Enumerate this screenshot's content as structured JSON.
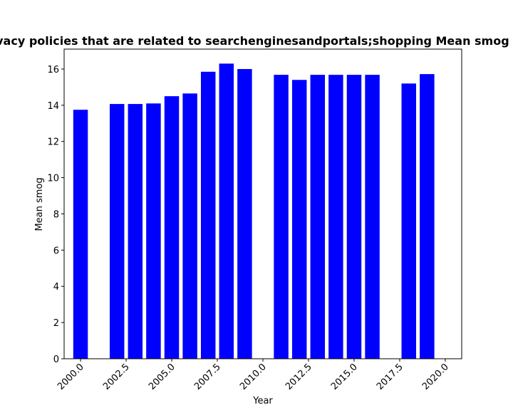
{
  "chart_data": {
    "type": "bar",
    "title": "Mean smog of privacy policies that are related to searchenginesandportals;shopping Mean smog in privacy policies",
    "xlabel": "Year",
    "ylabel": "Mean smog",
    "x": [
      2000,
      2002,
      2003,
      2004,
      2005,
      2006,
      2007,
      2008,
      2009,
      2011,
      2012,
      2013,
      2014,
      2015,
      2016,
      2018,
      2019
    ],
    "values": [
      13.75,
      14.07,
      14.07,
      14.1,
      14.5,
      14.65,
      15.85,
      16.3,
      16.0,
      15.68,
      15.4,
      15.68,
      15.68,
      15.68,
      15.68,
      15.2,
      15.72
    ],
    "xlim": [
      1999.1,
      2020.9
    ],
    "ylim": [
      0,
      17.1
    ],
    "xticks": [
      "2000.0",
      "2002.5",
      "2005.0",
      "2007.5",
      "2010.0",
      "2012.5",
      "2015.0",
      "2017.5",
      "2020.0"
    ],
    "yticks": [
      "0",
      "2",
      "4",
      "6",
      "8",
      "10",
      "12",
      "14",
      "16"
    ],
    "bar_color": "#0000ff",
    "grid": false
  }
}
